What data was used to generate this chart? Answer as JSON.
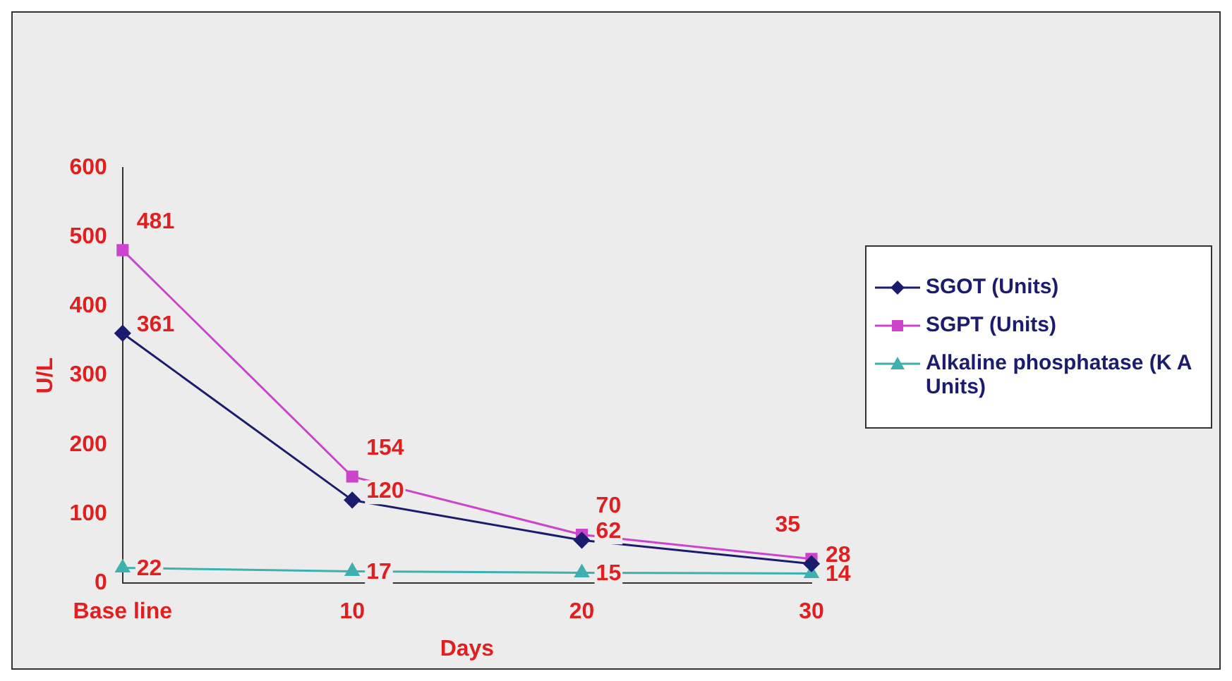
{
  "chart_data": {
    "type": "line",
    "xlabel": "Days",
    "ylabel": "U/L",
    "categories": [
      "Base line",
      "10",
      "20",
      "30"
    ],
    "series": [
      {
        "name": "SGOT (Units)",
        "color": "#1c1c6e",
        "marker": "diamond",
        "values": [
          361,
          120,
          62,
          28
        ]
      },
      {
        "name": "SGPT (Units)",
        "color": "#cc44cc",
        "marker": "square",
        "values": [
          481,
          154,
          70,
          35
        ]
      },
      {
        "name": "Alkaline phosphatase (K A Units)",
        "color": "#3fb0b0",
        "marker": "triangle",
        "values": [
          22,
          17,
          15,
          14
        ]
      }
    ],
    "ylim": [
      0,
      600
    ],
    "yticks": [
      0,
      100,
      200,
      300,
      400,
      500,
      600
    ],
    "grid": false,
    "legend": "right",
    "data_labels": true,
    "line_style": "solid"
  }
}
